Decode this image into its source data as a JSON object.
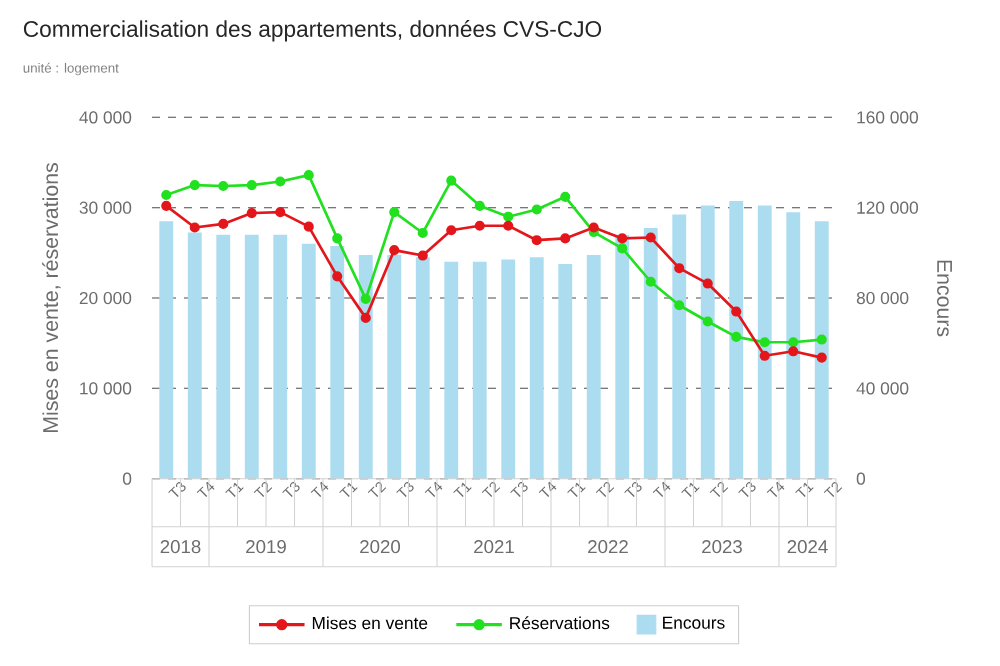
{
  "chart_data": {
    "type": "line",
    "title": "Commercialisation des appartements, données CVS-CJO",
    "subtitle": "unité : logement",
    "categories": [
      "T3",
      "T4",
      "T1",
      "T2",
      "T3",
      "T4",
      "T1",
      "T2",
      "T3",
      "T4",
      "T1",
      "T2",
      "T3",
      "T4",
      "T1",
      "T2",
      "T3",
      "T4",
      "T1",
      "T2",
      "T3",
      "T4",
      "T1",
      "T2"
    ],
    "annotations": [
      "2018",
      "2019",
      "2020",
      "2021",
      "2022",
      "2023",
      "2024"
    ],
    "series": [
      {
        "name": "Mises en vente",
        "color": "#e3161b",
        "values": [
          30200,
          27800,
          28200,
          29400,
          29500,
          27900,
          22400,
          17800,
          25300,
          24700,
          27500,
          28000,
          28000,
          26400,
          26600,
          27800,
          26600,
          26700,
          23300,
          21600,
          18500,
          13600,
          14100,
          13400
        ]
      },
      {
        "name": "Réservations",
        "color": "#22e01f",
        "values": [
          31400,
          32500,
          32400,
          32500,
          32900,
          33600,
          26600,
          19900,
          29500,
          27200,
          33000,
          30200,
          29000,
          29800,
          31200,
          27300,
          25500,
          21800,
          19200,
          17400,
          15700,
          15100,
          15100,
          15400
        ]
      },
      {
        "name": "Encours",
        "type": "bar",
        "axis": "y2",
        "color": "#acdcf0",
        "values": [
          114000,
          109000,
          108000,
          108000,
          108000,
          104000,
          103000,
          99000,
          99000,
          98000,
          96000,
          96000,
          97000,
          98000,
          95000,
          99000,
          108000,
          111000,
          117000,
          121000,
          123000,
          121000,
          118000,
          114000
        ]
      }
    ],
    "ylabel": "Mises en vente, réservations",
    "y2label": "Encours",
    "ylim": [
      0,
      40000
    ],
    "yticks": [
      0,
      {
        "value": 10000,
        "label": "10 000"
      },
      {
        "value": 20000,
        "label": "20 000"
      },
      {
        "value": 30000,
        "label": "30 000"
      },
      {
        "value": 40000,
        "label": "40 000"
      }
    ],
    "y2lim": [
      0,
      160000
    ],
    "y2ticks": [
      0,
      {
        "value": 40000,
        "label": "40 000"
      },
      {
        "value": 80000,
        "label": "80 000"
      },
      {
        "value": 120000,
        "label": "120 000"
      },
      {
        "value": 160000,
        "label": "160 000"
      }
    ],
    "grid": "y",
    "legend": "bottom",
    "marker": "circle",
    "line_style": "solid"
  }
}
